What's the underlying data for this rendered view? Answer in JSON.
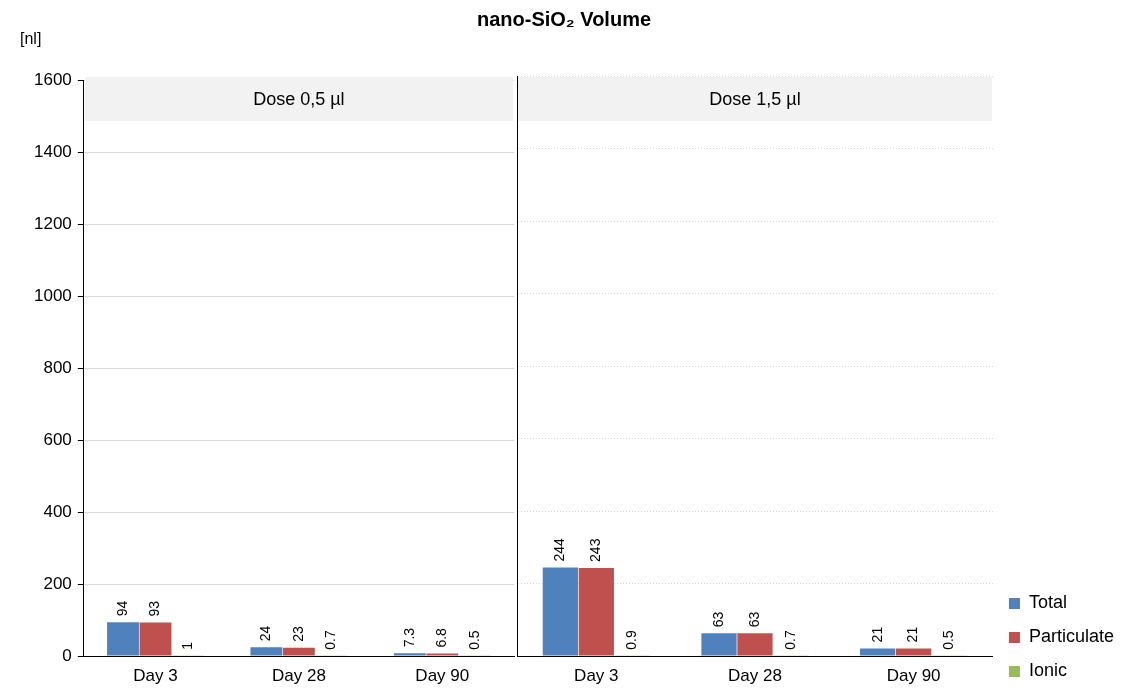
{
  "chart_data": [
    {
      "type": "bar",
      "title": "nano-SiO₂   Volume",
      "subtitle": "Dose 0,5 µl",
      "ylabel": "[nl]",
      "categories": [
        "Day 3",
        "Day 28",
        "Day 90"
      ],
      "series": [
        {
          "color": "#4f81bd",
          "values": [
            94,
            24,
            7.3
          ]
        },
        {
          "color": "#c0504d",
          "values": [
            93,
            23,
            6.8
          ]
        },
        {
          "color": "#9bbb59",
          "values": [
            1,
            0.7,
            0.5
          ]
        }
      ],
      "ylim": [
        0,
        1600
      ],
      "yticks": [
        0,
        200,
        400,
        600,
        800,
        1000,
        1200,
        1400,
        1600
      ],
      "grid": "y",
      "data_labels": true
    },
    {
      "type": "bar",
      "subtitle": "Dose 1,5 µl",
      "categories": [
        "Day 3",
        "Day 28",
        "Day 90"
      ],
      "series": [
        {
          "name": "Total",
          "color": "#4f81bd",
          "values": [
            244,
            63,
            21
          ]
        },
        {
          "name": "Particulate",
          "color": "#c0504d",
          "values": [
            243,
            63,
            21
          ]
        },
        {
          "name": "Ionic",
          "color": "#9bbb59",
          "values": [
            0.9,
            0.7,
            0.5
          ]
        }
      ],
      "ylim": [
        0,
        1600
      ],
      "yticks": [
        0,
        200,
        400,
        600,
        800,
        1000,
        1200,
        1400,
        1600
      ],
      "tick_labels": "x",
      "grid": "y",
      "legend": "bottom right",
      "data_labels": true
    }
  ]
}
